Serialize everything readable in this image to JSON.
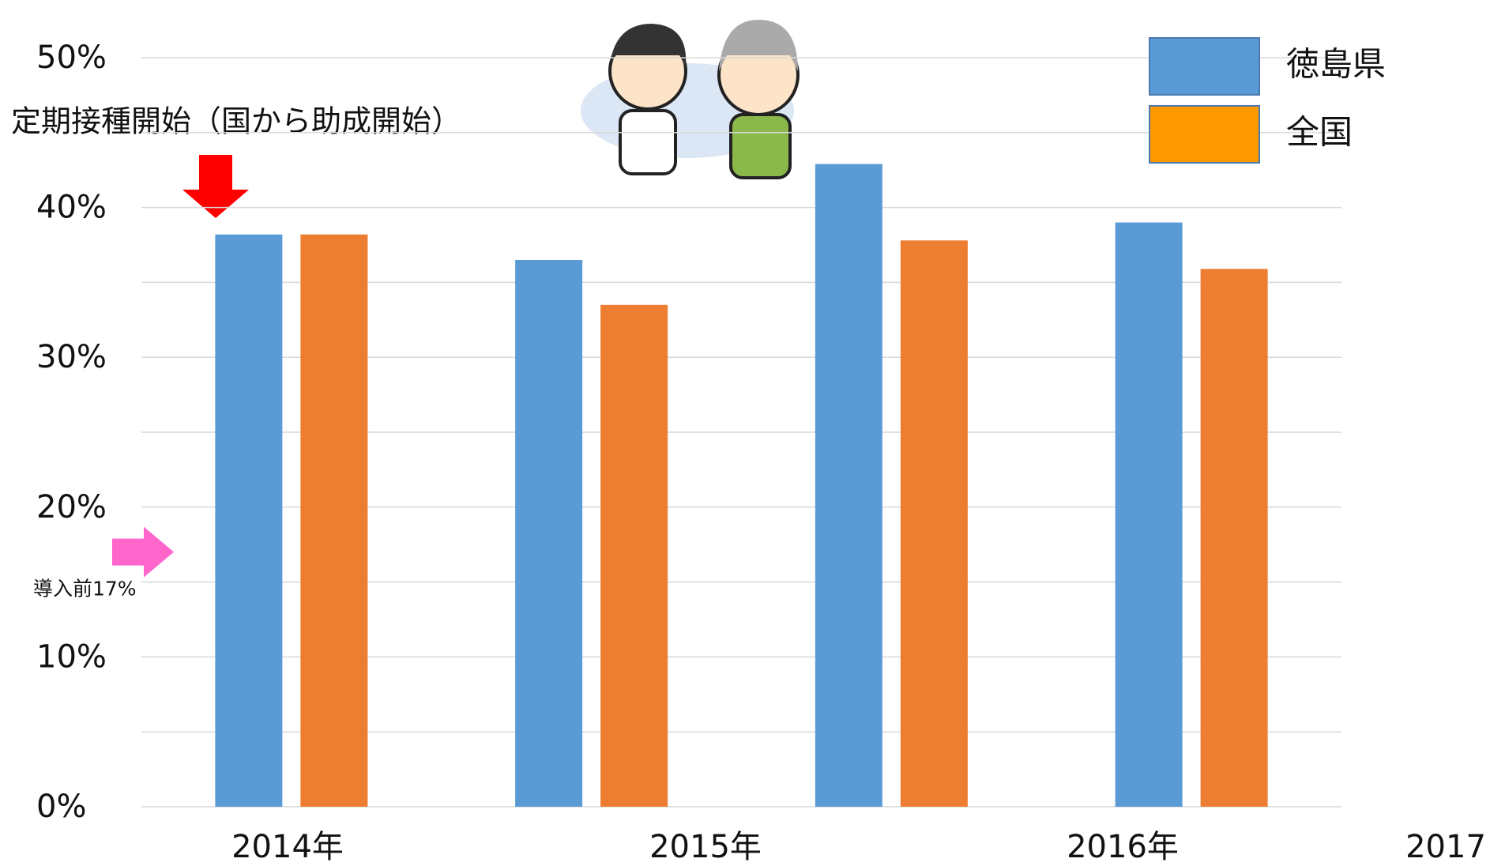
{
  "chart_data": {
    "type": "bar",
    "categories": [
      null,
      null,
      null,
      null
    ],
    "x_axis_labels": [
      "2014年",
      "2015年",
      "2016年",
      "2017"
    ],
    "series": [
      {
        "name": "徳島県",
        "color": "#5b9bd5",
        "legend_color": "#5b9bd5",
        "values": [
          38.2,
          36.5,
          42.9,
          39.0
        ]
      },
      {
        "name": "全国",
        "color": "#ed7d31",
        "legend_color": "#ff9900",
        "values": [
          38.2,
          33.5,
          37.8,
          35.9
        ]
      }
    ],
    "ylim": [
      0,
      50
    ],
    "yticks": [
      {
        "value": 0,
        "label": "0%"
      },
      {
        "value": 10,
        "label": "10%"
      },
      {
        "value": 20,
        "label": "20%"
      },
      {
        "value": 30,
        "label": "30%"
      },
      {
        "value": 40,
        "label": "40%"
      },
      {
        "value": 50,
        "label": "50%"
      }
    ],
    "minor_gridlines": [
      5,
      15,
      25,
      35,
      45
    ],
    "grid": true,
    "legend": "top-right",
    "annotations": [
      {
        "text": "定期接種開始（国から助成開始）"
      },
      {
        "value": 17,
        "label": "導入前17%"
      }
    ]
  }
}
